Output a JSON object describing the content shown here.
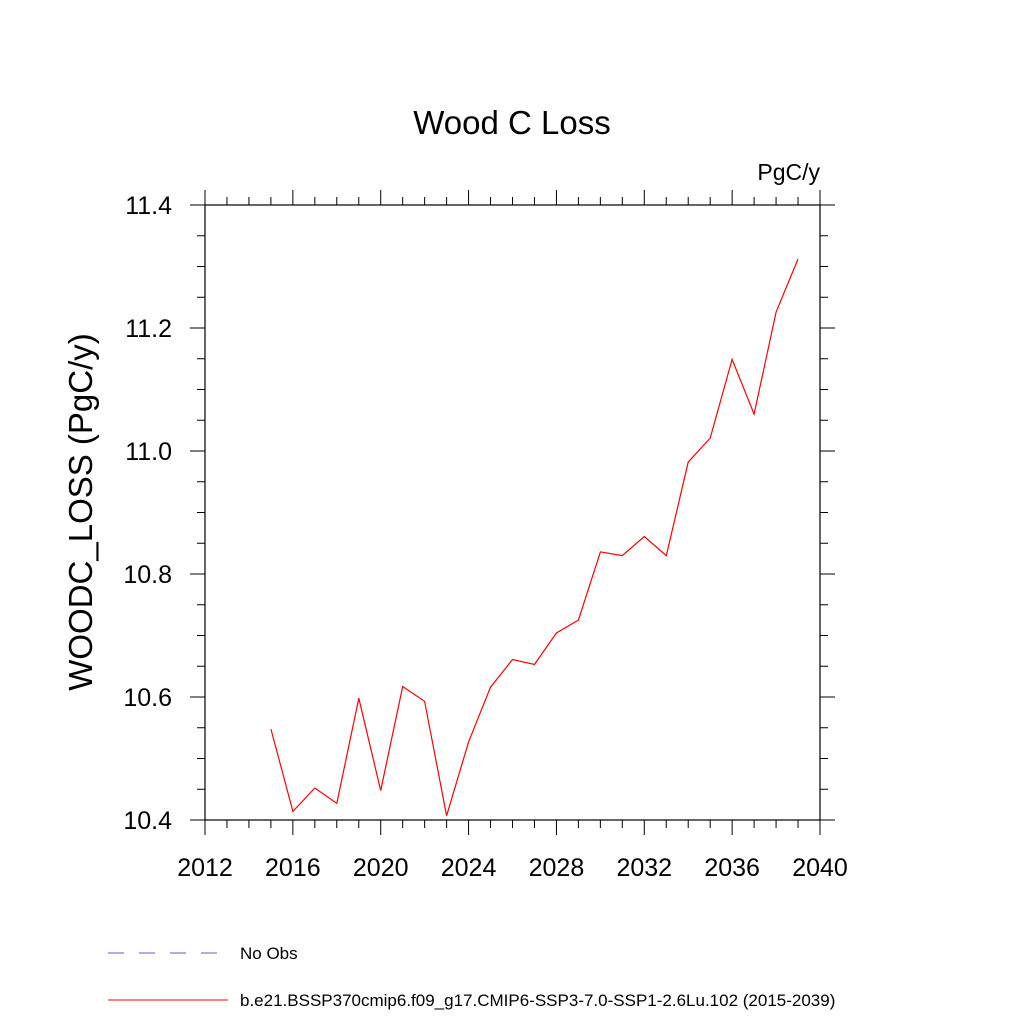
{
  "chart_data": {
    "type": "line",
    "title": "Wood C Loss",
    "units_label": "PgC/y",
    "xlabel": "",
    "ylabel": "WOODC_LOSS  (PgC/y)",
    "xlim": [
      2012,
      2040
    ],
    "ylim": [
      10.4,
      11.4
    ],
    "x_ticks": [
      2012,
      2016,
      2020,
      2024,
      2028,
      2032,
      2036,
      2040
    ],
    "y_ticks": [
      "10.4",
      "10.6",
      "10.8",
      "11.0",
      "11.2",
      "11.4"
    ],
    "grid": false,
    "legend_position": "bottom",
    "series": [
      {
        "name": "b.e21.BSSP370cmip6.f09_g17.CMIP6-SSP3-7.0-SSP1-2.6Lu.102 (2015-2039)",
        "color": "#ff0000",
        "style": "solid",
        "x": [
          2015,
          2016,
          2017,
          2018,
          2019,
          2020,
          2021,
          2022,
          2023,
          2024,
          2025,
          2026,
          2027,
          2028,
          2029,
          2030,
          2031,
          2032,
          2033,
          2034,
          2035,
          2036,
          2037,
          2038,
          2039
        ],
        "y": [
          10.548,
          10.414,
          10.452,
          10.427,
          10.598,
          10.448,
          10.617,
          10.593,
          10.407,
          10.527,
          10.616,
          10.661,
          10.653,
          10.704,
          10.725,
          10.836,
          10.83,
          10.861,
          10.83,
          10.982,
          11.021,
          11.149,
          11.06,
          11.226,
          11.312
        ]
      }
    ],
    "legend": [
      {
        "label": "No Obs",
        "color": "#6a5acd",
        "style": "dashed"
      },
      {
        "label": "b.e21.BSSP370cmip6.f09_g17.CMIP6-SSP3-7.0-SSP1-2.6Lu.102 (2015-2039)",
        "color": "#ff0000",
        "style": "solid"
      }
    ]
  }
}
